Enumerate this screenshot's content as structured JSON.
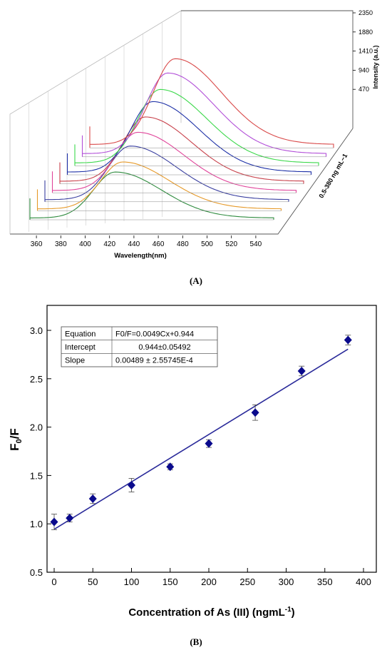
{
  "figure": {
    "panel_a_label": "(A)",
    "panel_b_label": "(B)"
  },
  "chart_data": [
    {
      "type": "line",
      "subtype": "3d-waterfall",
      "title": "",
      "xlabel": "Wavelength(nm)",
      "ylabel": "0.5-380 ng mL−1",
      "zlabel": "Intensity (a.u.)",
      "x_ticks": [
        "360",
        "380",
        "400",
        "420",
        "440",
        "460",
        "480",
        "500",
        "520",
        "540"
      ],
      "z_ticks": [
        "470",
        "940",
        "1410",
        "1880",
        "2350"
      ],
      "xlim": [
        350,
        550
      ],
      "zlim": [
        0,
        2350
      ],
      "peak_wavelength_nm": 420,
      "series": [
        {
          "color": "#2e8b3e",
          "peak": 900
        },
        {
          "color": "#e69a2a",
          "peak": 920
        },
        {
          "color": "#3a3fa0",
          "peak": 1050
        },
        {
          "color": "#e0449a",
          "peak": 1140
        },
        {
          "color": "#c8404a",
          "peak": 1260
        },
        {
          "color": "#1c2fa6",
          "peak": 1380
        },
        {
          "color": "#3bd84a",
          "peak": 1440
        },
        {
          "color": "#b24fd8",
          "peak": 1580
        },
        {
          "color": "#d94a4a",
          "peak": 1680
        }
      ]
    },
    {
      "type": "scatter",
      "title": "",
      "xlabel": "Concentration of As (III) (ngmL",
      "xlabel_sup": "-1",
      "xlabel_end": ")",
      "ylabel_main": "F",
      "ylabel_sub": "0",
      "ylabel_end": "/F",
      "xlim": [
        0,
        400
      ],
      "ylim": [
        0.5,
        3.0
      ],
      "x_ticks": [
        "0",
        "50",
        "100",
        "150",
        "200",
        "250",
        "300",
        "350",
        "400"
      ],
      "y_ticks": [
        "0.5",
        "1.0",
        "1.5",
        "2.0",
        "2.5",
        "3.0"
      ],
      "marker_color": "#0a0a8c",
      "line_color": "#2a2a9a",
      "points": [
        {
          "x": 0,
          "y": 1.02,
          "err": 0.08
        },
        {
          "x": 20,
          "y": 1.06,
          "err": 0.04
        },
        {
          "x": 50,
          "y": 1.26,
          "err": 0.05
        },
        {
          "x": 100,
          "y": 1.4,
          "err": 0.07
        },
        {
          "x": 150,
          "y": 1.59,
          "err": 0.03
        },
        {
          "x": 200,
          "y": 1.83,
          "err": 0.04
        },
        {
          "x": 260,
          "y": 2.15,
          "err": 0.08
        },
        {
          "x": 320,
          "y": 2.58,
          "err": 0.05
        },
        {
          "x": 380,
          "y": 2.9,
          "err": 0.05
        }
      ],
      "fit": {
        "slope": 0.0049,
        "intercept": 0.944,
        "x_range": [
          0,
          380
        ]
      },
      "stats_table": [
        {
          "label": "Equation",
          "value": "F0/F=0.0049Cx+0.944"
        },
        {
          "label": "Intercept",
          "value": "0.944±0.05492"
        },
        {
          "label": "Slope",
          "value": "0.00489 ± 2.55745E-4"
        }
      ]
    }
  ]
}
